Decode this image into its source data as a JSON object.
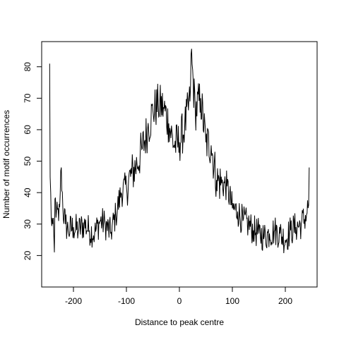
{
  "chart_data": {
    "type": "line",
    "title": "",
    "xlabel": "Distance to peak centre",
    "ylabel": "Number of motif occurrences",
    "xlim": [
      -260,
      260
    ],
    "ylim": [
      10,
      88
    ],
    "x_ticks": [
      -200,
      -100,
      0,
      100,
      200
    ],
    "x_tick_labels": [
      "-200",
      "-100",
      "0",
      "100",
      "200"
    ],
    "y_ticks": [
      20,
      30,
      40,
      50,
      60,
      70,
      80
    ],
    "y_tick_labels": [
      "20",
      "30",
      "40",
      "50",
      "60",
      "70",
      "80"
    ],
    "grid": false,
    "legend": "none",
    "line_color": "#000000",
    "note_on_values": "series is a noisy line from x=-245 to x=245 in steps of 1; only anchor values read from the plot are stored, intermediate values are interpolated with noise",
    "series": [
      {
        "anchor_x": [
          -245,
          -244,
          -242,
          -239,
          -236,
          -235,
          -232,
          -228,
          -225,
          -223,
          -220,
          -215,
          -210,
          -200,
          -190,
          -180,
          -170,
          -160,
          -150,
          -140,
          -130,
          -120,
          -110,
          -100,
          -90,
          -80,
          -70,
          -60,
          -50,
          -40,
          -30,
          -20,
          -10,
          0,
          10,
          20,
          22,
          30,
          40,
          50,
          60,
          70,
          80,
          90,
          100,
          110,
          120,
          130,
          140,
          150,
          160,
          170,
          180,
          190,
          200,
          210,
          220,
          230,
          240,
          244,
          245
        ],
        "anchor_y": [
          81,
          45,
          32,
          30,
          21,
          38,
          34,
          31,
          40,
          48,
          35,
          30,
          28,
          29,
          28,
          30,
          28,
          27,
          31,
          30,
          27,
          33,
          40,
          42,
          46,
          49,
          54,
          60,
          66,
          68,
          67,
          62,
          55,
          56,
          61,
          69,
          84,
          66,
          70,
          56,
          55,
          44,
          43,
          42,
          35,
          34,
          31,
          30,
          28,
          27,
          26,
          27,
          28,
          27,
          25,
          28,
          29,
          30,
          33,
          36,
          48
        ]
      }
    ]
  }
}
